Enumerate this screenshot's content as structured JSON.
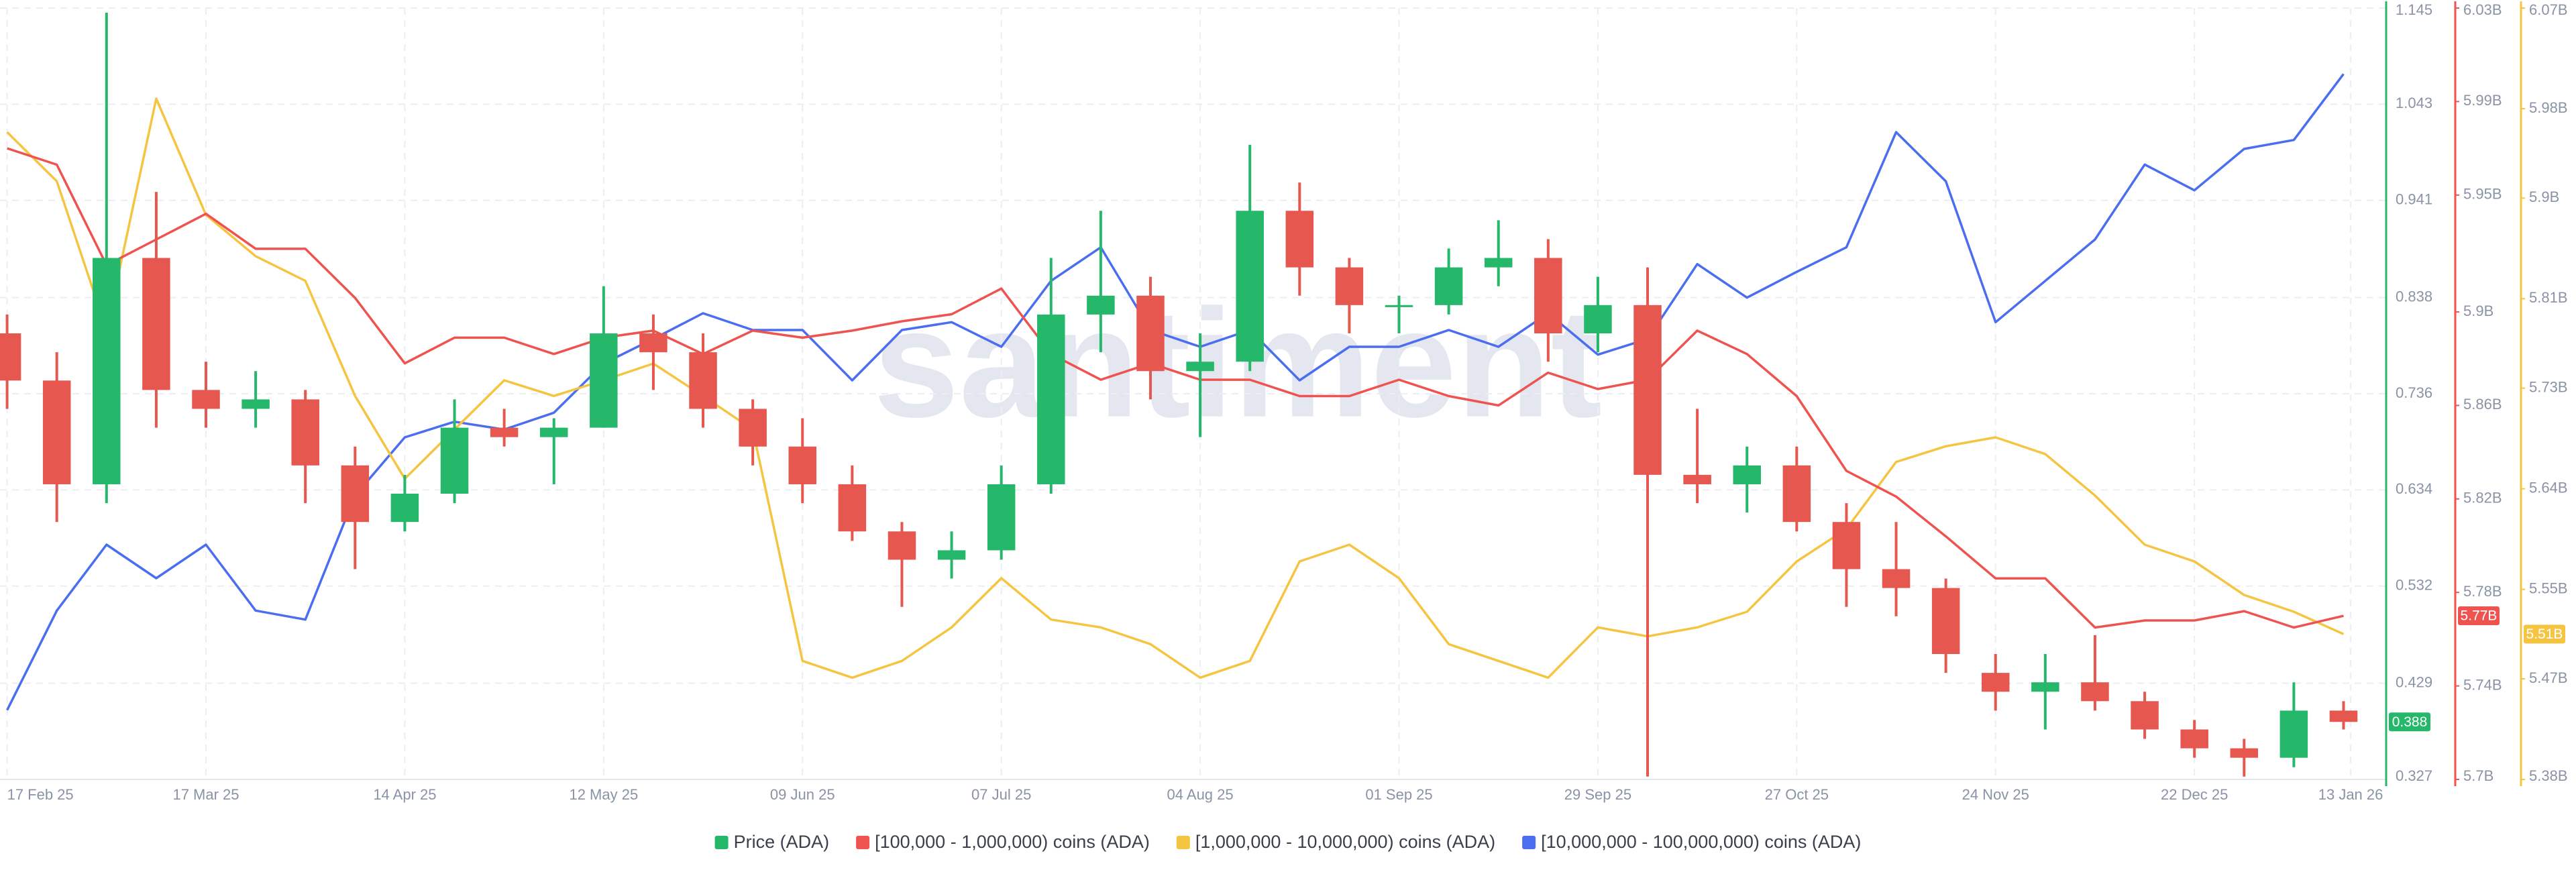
{
  "chart_data": {
    "type": "candlestick",
    "watermark": "santiment",
    "x": [
      "2025-02-17",
      "2025-02-24",
      "2025-03-03",
      "2025-03-10",
      "2025-03-17",
      "2025-03-24",
      "2025-03-31",
      "2025-04-07",
      "2025-04-14",
      "2025-04-21",
      "2025-04-28",
      "2025-05-05",
      "2025-05-12",
      "2025-05-19",
      "2025-05-26",
      "2025-06-02",
      "2025-06-09",
      "2025-06-16",
      "2025-06-23",
      "2025-06-30",
      "2025-07-07",
      "2025-07-14",
      "2025-07-21",
      "2025-07-28",
      "2025-08-04",
      "2025-08-11",
      "2025-08-18",
      "2025-08-25",
      "2025-09-01",
      "2025-09-08",
      "2025-09-15",
      "2025-09-22",
      "2025-09-29",
      "2025-10-06",
      "2025-10-13",
      "2025-10-20",
      "2025-10-27",
      "2025-11-03",
      "2025-11-10",
      "2025-11-17",
      "2025-11-24",
      "2025-12-01",
      "2025-12-08",
      "2025-12-15",
      "2025-12-22",
      "2025-12-29",
      "2026-01-05",
      "2026-01-12"
    ],
    "xlim": [
      "2025-02-16",
      "2026-01-18"
    ],
    "xticks": [
      {
        "value": "2025-02-17",
        "label": "17 Feb 25"
      },
      {
        "value": "2025-03-17",
        "label": "17 Mar 25"
      },
      {
        "value": "2025-04-14",
        "label": "14 Apr 25"
      },
      {
        "value": "2025-05-12",
        "label": "12 May 25"
      },
      {
        "value": "2025-06-09",
        "label": "09 Jun 25"
      },
      {
        "value": "2025-07-07",
        "label": "07 Jul 25"
      },
      {
        "value": "2025-08-04",
        "label": "04 Aug 25"
      },
      {
        "value": "2025-09-01",
        "label": "01 Sep 25"
      },
      {
        "value": "2025-09-29",
        "label": "29 Sep 25"
      },
      {
        "value": "2025-10-27",
        "label": "27 Oct 25"
      },
      {
        "value": "2025-11-24",
        "label": "24 Nov 25"
      },
      {
        "value": "2025-12-22",
        "label": "22 Dec 25"
      },
      {
        "value": "2026-01-13",
        "label": "13 Jan 26"
      }
    ],
    "ylim": [
      0.327,
      1.145
    ],
    "yticks": [
      0.327,
      0.429,
      0.532,
      0.634,
      0.736,
      0.838,
      0.941,
      1.043,
      1.145
    ],
    "y2lim": [
      5.7,
      6.03
    ],
    "y2ticks": [
      {
        "value": 5.7,
        "label": "5.7B"
      },
      {
        "value": 5.74,
        "label": "5.74B"
      },
      {
        "value": 5.78,
        "label": "5.78B"
      },
      {
        "value": 5.82,
        "label": "5.82B"
      },
      {
        "value": 5.86,
        "label": "5.86B"
      },
      {
        "value": 5.9,
        "label": "5.9B"
      },
      {
        "value": 5.95,
        "label": "5.95B"
      },
      {
        "value": 5.99,
        "label": "5.99B"
      },
      {
        "value": 6.03,
        "label": "6.03B"
      }
    ],
    "y3lim": [
      5.38,
      6.07
    ],
    "y3ticks": [
      {
        "value": 5.38,
        "label": "5.38B"
      },
      {
        "value": 5.47,
        "label": "5.47B"
      },
      {
        "value": 5.55,
        "label": "5.55B"
      },
      {
        "value": 5.64,
        "label": "5.64B"
      },
      {
        "value": 5.73,
        "label": "5.73B"
      },
      {
        "value": 5.81,
        "label": "5.81B"
      },
      {
        "value": 5.9,
        "label": "5.9B"
      },
      {
        "value": 5.98,
        "label": "5.98B"
      },
      {
        "value": 6.07,
        "label": "6.07B"
      }
    ],
    "grid": true,
    "series": [
      {
        "name": "Price (ADA)",
        "type": "candlestick",
        "color": "#26b86a",
        "down_color": "#e5574f",
        "axis": "y",
        "value_label": "0.388",
        "open": [
          0.8,
          0.75,
          0.64,
          0.88,
          0.74,
          0.72,
          0.73,
          0.66,
          0.6,
          0.63,
          0.7,
          0.69,
          0.7,
          0.8,
          0.78,
          0.72,
          0.68,
          0.64,
          0.59,
          0.56,
          0.57,
          0.64,
          0.82,
          0.84,
          0.76,
          0.77,
          0.93,
          0.87,
          0.83,
          0.83,
          0.87,
          0.88,
          0.8,
          0.83,
          0.65,
          0.64,
          0.66,
          0.6,
          0.55,
          0.53,
          0.44,
          0.42,
          0.43,
          0.41,
          0.38,
          0.36,
          0.35,
          0.4
        ],
        "high": [
          0.82,
          0.78,
          1.14,
          0.95,
          0.77,
          0.76,
          0.74,
          0.68,
          0.65,
          0.73,
          0.72,
          0.71,
          0.85,
          0.82,
          0.8,
          0.73,
          0.71,
          0.66,
          0.6,
          0.59,
          0.66,
          0.88,
          0.93,
          0.86,
          0.8,
          1.0,
          0.96,
          0.88,
          0.84,
          0.89,
          0.92,
          0.9,
          0.86,
          0.87,
          0.72,
          0.68,
          0.68,
          0.62,
          0.6,
          0.54,
          0.46,
          0.46,
          0.48,
          0.42,
          0.39,
          0.37,
          0.43,
          0.41
        ],
        "low": [
          0.72,
          0.6,
          0.62,
          0.7,
          0.7,
          0.7,
          0.62,
          0.55,
          0.59,
          0.62,
          0.68,
          0.64,
          0.7,
          0.74,
          0.7,
          0.66,
          0.62,
          0.58,
          0.51,
          0.54,
          0.56,
          0.63,
          0.78,
          0.73,
          0.69,
          0.76,
          0.84,
          0.8,
          0.8,
          0.82,
          0.85,
          0.77,
          0.78,
          0.33,
          0.62,
          0.61,
          0.59,
          0.51,
          0.5,
          0.44,
          0.4,
          0.38,
          0.4,
          0.37,
          0.35,
          0.33,
          0.34,
          0.38
        ],
        "close": [
          0.75,
          0.64,
          0.88,
          0.74,
          0.72,
          0.73,
          0.66,
          0.6,
          0.63,
          0.7,
          0.69,
          0.7,
          0.8,
          0.78,
          0.72,
          0.68,
          0.64,
          0.59,
          0.56,
          0.57,
          0.64,
          0.82,
          0.84,
          0.76,
          0.77,
          0.93,
          0.87,
          0.83,
          0.83,
          0.87,
          0.88,
          0.8,
          0.83,
          0.65,
          0.64,
          0.66,
          0.6,
          0.55,
          0.53,
          0.46,
          0.42,
          0.43,
          0.41,
          0.38,
          0.36,
          0.35,
          0.4,
          0.388
        ]
      },
      {
        "name": "[100,000  - 1,000,000) coins (ADA)",
        "type": "line",
        "color": "#ef5350",
        "axis": "y2",
        "value_label": "5.77B",
        "values": [
          5.97,
          5.963,
          5.92,
          5.931,
          5.942,
          5.927,
          5.927,
          5.906,
          5.878,
          5.889,
          5.889,
          5.882,
          5.889,
          5.892,
          5.882,
          5.892,
          5.889,
          5.892,
          5.896,
          5.899,
          5.91,
          5.882,
          5.871,
          5.878,
          5.871,
          5.871,
          5.864,
          5.864,
          5.871,
          5.864,
          5.86,
          5.874,
          5.867,
          5.871,
          5.892,
          5.882,
          5.864,
          5.832,
          5.821,
          5.804,
          5.786,
          5.786,
          5.765,
          5.768,
          5.768,
          5.772,
          5.765,
          5.77
        ]
      },
      {
        "name": "[1,000,000 - 10,000,000) coins (ADA)",
        "type": "line",
        "color": "#f5c542",
        "axis": "y3",
        "value_label": "5.51B",
        "values": [
          5.959,
          5.915,
          5.782,
          5.989,
          5.885,
          5.848,
          5.826,
          5.723,
          5.649,
          5.693,
          5.737,
          5.723,
          5.737,
          5.752,
          5.723,
          5.693,
          5.486,
          5.471,
          5.486,
          5.516,
          5.56,
          5.523,
          5.516,
          5.501,
          5.471,
          5.486,
          5.575,
          5.59,
          5.56,
          5.501,
          5.486,
          5.471,
          5.516,
          5.508,
          5.516,
          5.53,
          5.575,
          5.604,
          5.664,
          5.678,
          5.686,
          5.671,
          5.634,
          5.59,
          5.575,
          5.545,
          5.53,
          5.51
        ]
      },
      {
        "name": "[10,000,000 - 100,000,000) coins (ADA)",
        "type": "line",
        "color": "#4b6ef0",
        "axis": "y3",
        "values": [
          5.442,
          5.531,
          5.59,
          5.56,
          5.59,
          5.531,
          5.523,
          5.634,
          5.686,
          5.7,
          5.693,
          5.708,
          5.752,
          5.774,
          5.797,
          5.782,
          5.782,
          5.737,
          5.782,
          5.789,
          5.767,
          5.826,
          5.856,
          5.782,
          5.767,
          5.782,
          5.737,
          5.767,
          5.767,
          5.782,
          5.767,
          5.797,
          5.76,
          5.774,
          5.841,
          5.811,
          5.834,
          5.856,
          5.959,
          5.915,
          5.789,
          5.826,
          5.863,
          5.93,
          5.907,
          5.944,
          5.952,
          6.011
        ]
      }
    ]
  }
}
